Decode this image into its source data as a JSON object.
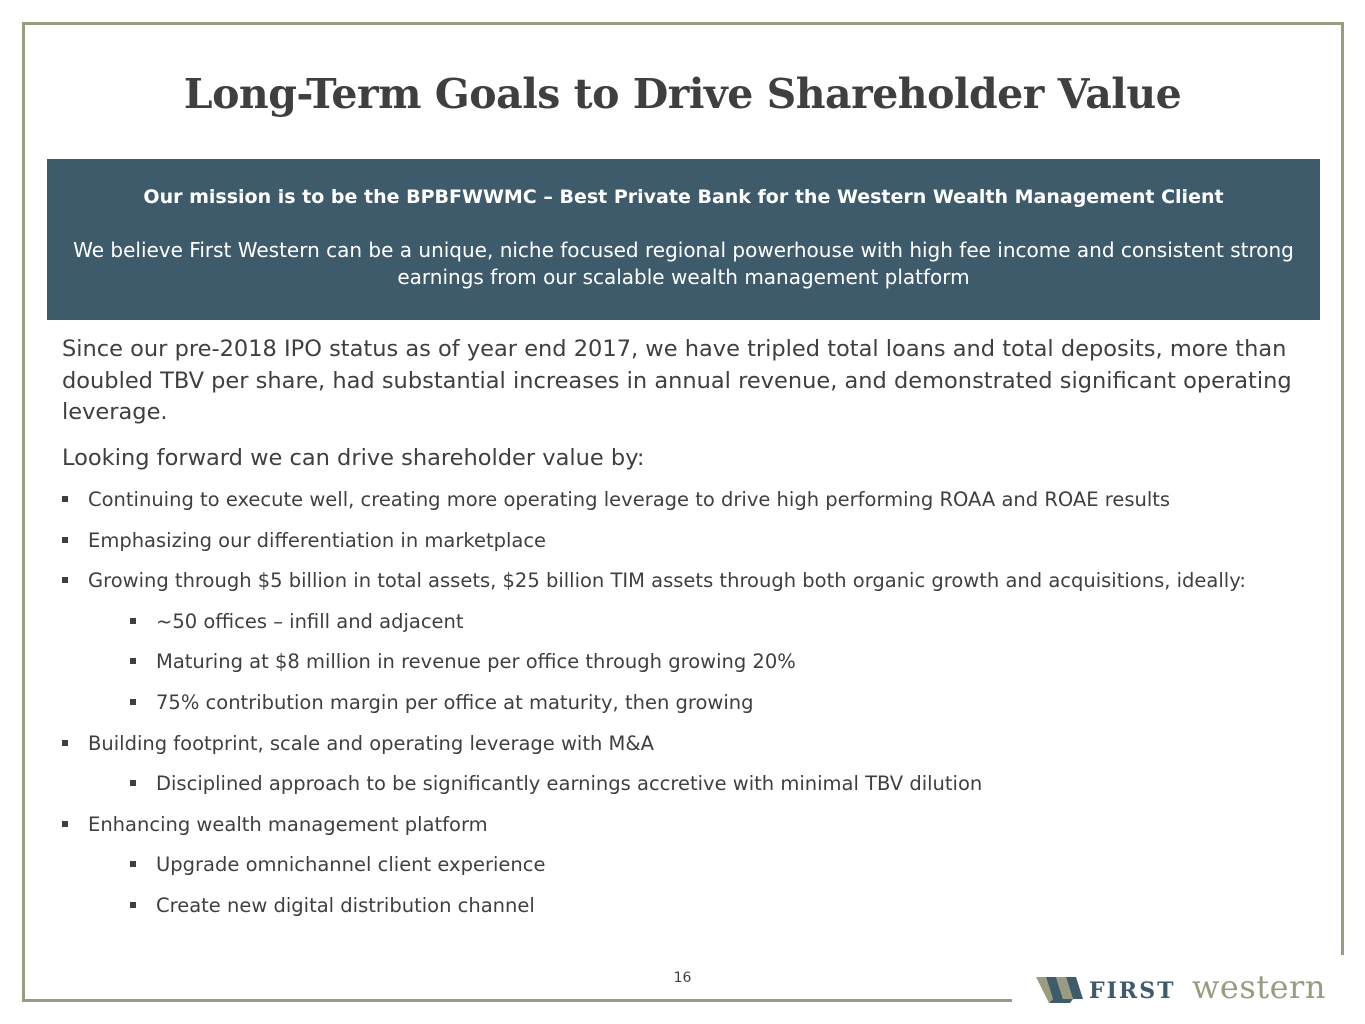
{
  "title": "Long-Term Goals to Drive Shareholder Value",
  "mission": {
    "headline": "Our mission is to be the BPBFWWMC – Best Private Bank for the Western Wealth Management Client",
    "body": "We believe First Western can be a unique, niche focused regional powerhouse with high fee income and consistent strong earnings from our scalable wealth management platform"
  },
  "intro": "Since our pre-2018 IPO status as of year end 2017, we have tripled total loans and total deposits, more than doubled TBV per share, had substantial increases in annual revenue, and demonstrated significant operating leverage.",
  "lead": "Looking forward we can drive shareholder value by:",
  "bullets": [
    {
      "text": "Continuing to execute well, creating more operating leverage to drive high performing ROAA and ROAE results",
      "level": 1
    },
    {
      "text": "Emphasizing our differentiation in marketplace",
      "level": 1
    },
    {
      "text": "Growing through $5 billion in total assets, $25 billion TIM assets through both organic growth and acquisitions, ideally:",
      "level": 1
    },
    {
      "text": "~50 offices – infill and adjacent",
      "level": 2
    },
    {
      "text": "Maturing at $8 million in revenue per office through growing 20%",
      "level": 2
    },
    {
      "text": "75% contribution margin per office at maturity, then growing",
      "level": 2
    },
    {
      "text": "Building footprint, scale and operating leverage with M&A",
      "level": 1
    },
    {
      "text": "Disciplined approach to be significantly earnings accretive with minimal TBV dilution",
      "level": 2
    },
    {
      "text": "Enhancing wealth management platform",
      "level": 1
    },
    {
      "text": "Upgrade omnichannel client experience",
      "level": 2
    },
    {
      "text": "Create new digital distribution channel",
      "level": 2
    }
  ],
  "page_number": "16",
  "logo": {
    "first": "FIRST",
    "western": "western",
    "colors": {
      "navy": "#3e5b6c",
      "olive": "#9a9c80"
    }
  },
  "colors": {
    "mission_bg": "#3e5b6c",
    "frame": "#9a9c80",
    "text": "#3f3f3f"
  }
}
